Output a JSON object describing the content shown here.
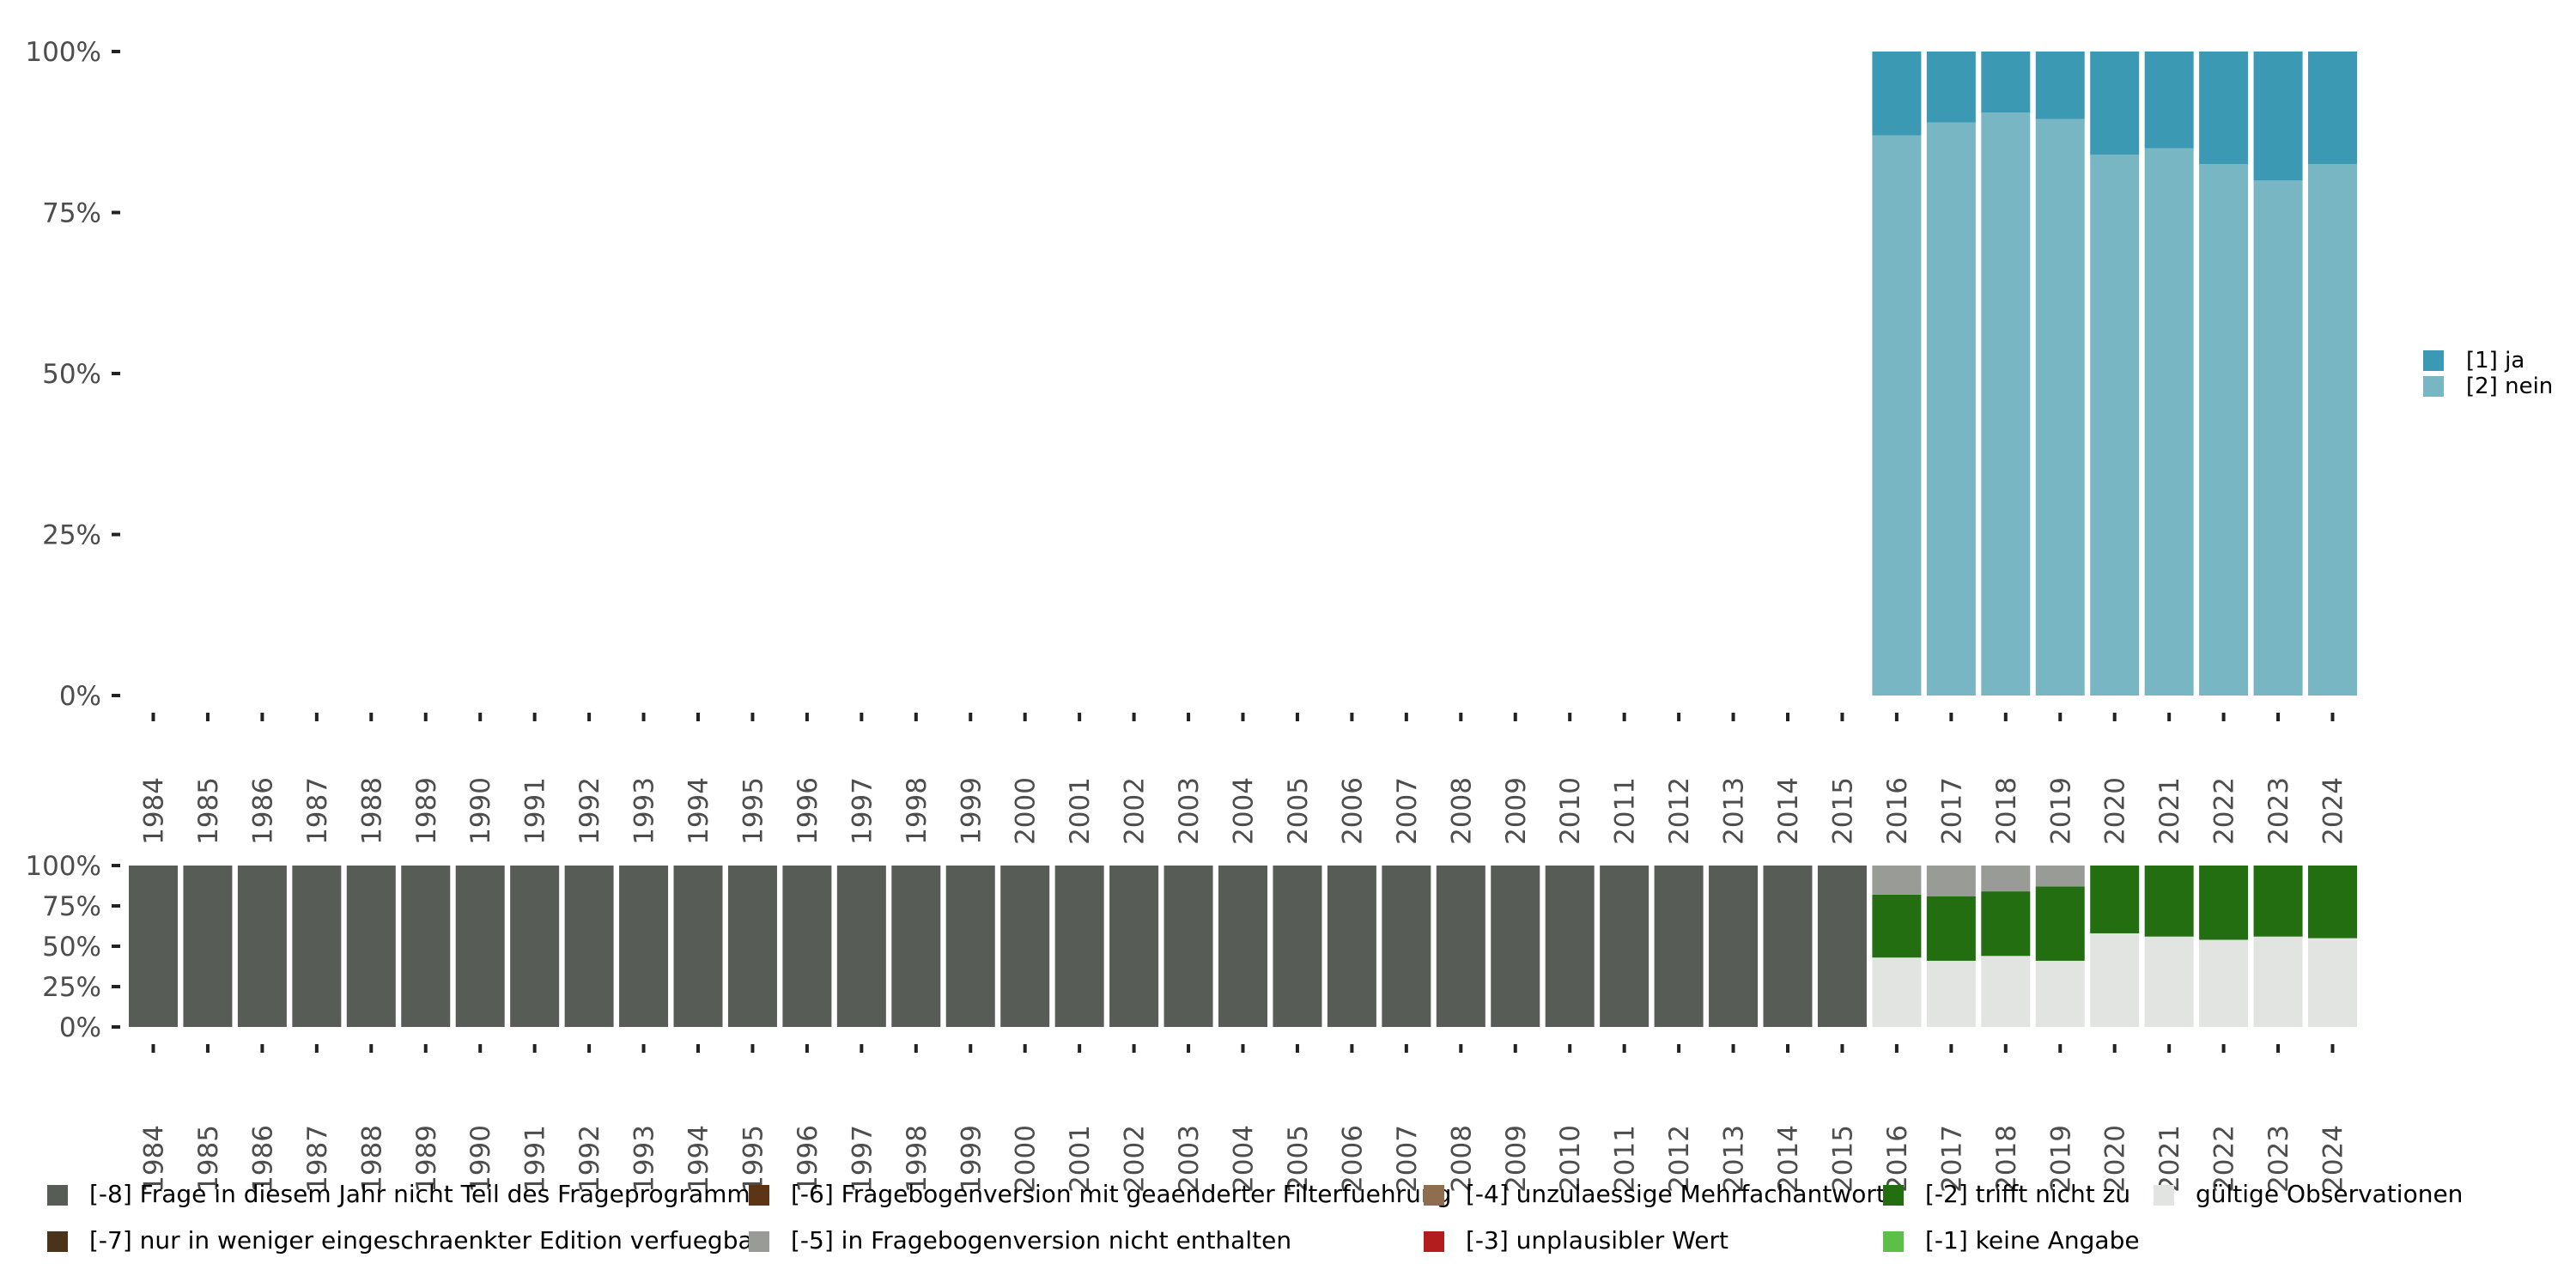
{
  "chart_data": [
    {
      "type": "bar",
      "stacked": true,
      "title": "",
      "xlabel": "",
      "ylabel": "",
      "ylim": [
        0,
        100
      ],
      "y_ticks": [
        "0%",
        "25%",
        "50%",
        "75%",
        "100%"
      ],
      "categories": [
        "1984",
        "1985",
        "1986",
        "1987",
        "1988",
        "1989",
        "1990",
        "1991",
        "1992",
        "1993",
        "1994",
        "1995",
        "1996",
        "1997",
        "1998",
        "1999",
        "2000",
        "2001",
        "2002",
        "2003",
        "2004",
        "2005",
        "2006",
        "2007",
        "2008",
        "2009",
        "2010",
        "2011",
        "2012",
        "2013",
        "2014",
        "2015",
        "2016",
        "2017",
        "2018",
        "2019",
        "2020",
        "2021",
        "2022",
        "2023",
        "2024"
      ],
      "legend_position": "right",
      "series": [
        {
          "name": "[2] nein",
          "color": "#78b6c4",
          "values": [
            null,
            null,
            null,
            null,
            null,
            null,
            null,
            null,
            null,
            null,
            null,
            null,
            null,
            null,
            null,
            null,
            null,
            null,
            null,
            null,
            null,
            null,
            null,
            null,
            null,
            null,
            null,
            null,
            null,
            null,
            null,
            null,
            87,
            89,
            90.5,
            89.5,
            84,
            85,
            82.5,
            80,
            82.5
          ]
        },
        {
          "name": "[1] ja",
          "color": "#3c99b3",
          "values": [
            null,
            null,
            null,
            null,
            null,
            null,
            null,
            null,
            null,
            null,
            null,
            null,
            null,
            null,
            null,
            null,
            null,
            null,
            null,
            null,
            null,
            null,
            null,
            null,
            null,
            null,
            null,
            null,
            null,
            null,
            null,
            null,
            13,
            11,
            9.5,
            10.5,
            16,
            15,
            17.5,
            20,
            17.5
          ]
        }
      ]
    },
    {
      "type": "bar",
      "stacked": true,
      "title": "",
      "xlabel": "",
      "ylabel": "",
      "ylim": [
        0,
        100
      ],
      "y_ticks": [
        "0%",
        "25%",
        "50%",
        "75%",
        "100%"
      ],
      "categories": [
        "1984",
        "1985",
        "1986",
        "1987",
        "1988",
        "1989",
        "1990",
        "1991",
        "1992",
        "1993",
        "1994",
        "1995",
        "1996",
        "1997",
        "1998",
        "1999",
        "2000",
        "2001",
        "2002",
        "2003",
        "2004",
        "2005",
        "2006",
        "2007",
        "2008",
        "2009",
        "2010",
        "2011",
        "2012",
        "2013",
        "2014",
        "2015",
        "2016",
        "2017",
        "2018",
        "2019",
        "2020",
        "2021",
        "2022",
        "2023",
        "2024"
      ],
      "legend_position": "bottom",
      "series": [
        {
          "name": "gültige Observationen",
          "color": "#e1e4e0",
          "values": [
            0,
            0,
            0,
            0,
            0,
            0,
            0,
            0,
            0,
            0,
            0,
            0,
            0,
            0,
            0,
            0,
            0,
            0,
            0,
            0,
            0,
            0,
            0,
            0,
            0,
            0,
            0,
            0,
            0,
            0,
            0,
            0,
            43,
            41,
            44,
            41,
            58,
            56,
            54,
            56,
            55
          ]
        },
        {
          "name": "[-1] keine Angabe",
          "color": "#5cbf47",
          "values": [
            0,
            0,
            0,
            0,
            0,
            0,
            0,
            0,
            0,
            0,
            0,
            0,
            0,
            0,
            0,
            0,
            0,
            0,
            0,
            0,
            0,
            0,
            0,
            0,
            0,
            0,
            0,
            0,
            0,
            0,
            0,
            0,
            0,
            0,
            0,
            0,
            0,
            0,
            0,
            0,
            0
          ]
        },
        {
          "name": "[-2] trifft nicht zu",
          "color": "#226e11",
          "values": [
            0,
            0,
            0,
            0,
            0,
            0,
            0,
            0,
            0,
            0,
            0,
            0,
            0,
            0,
            0,
            0,
            0,
            0,
            0,
            0,
            0,
            0,
            0,
            0,
            0,
            0,
            0,
            0,
            0,
            0,
            0,
            0,
            39,
            40,
            40,
            46,
            42,
            44,
            46,
            44,
            45
          ]
        },
        {
          "name": "[-3] unplausibler Wert",
          "color": "#b31d1d",
          "values": [
            0,
            0,
            0,
            0,
            0,
            0,
            0,
            0,
            0,
            0,
            0,
            0,
            0,
            0,
            0,
            0,
            0,
            0,
            0,
            0,
            0,
            0,
            0,
            0,
            0,
            0,
            0,
            0,
            0,
            0,
            0,
            0,
            0,
            0,
            0,
            0,
            0,
            0,
            0,
            0,
            0
          ]
        },
        {
          "name": "[-4] unzulaessige Mehrfachantwort",
          "color": "#8f6e4f",
          "values": [
            0,
            0,
            0,
            0,
            0,
            0,
            0,
            0,
            0,
            0,
            0,
            0,
            0,
            0,
            0,
            0,
            0,
            0,
            0,
            0,
            0,
            0,
            0,
            0,
            0,
            0,
            0,
            0,
            0,
            0,
            0,
            0,
            0,
            0,
            0,
            0,
            0,
            0,
            0,
            0,
            0
          ]
        },
        {
          "name": "[-5] in Fragebogenversion nicht enthalten",
          "color": "#999b97",
          "values": [
            0,
            0,
            0,
            0,
            0,
            0,
            0,
            0,
            0,
            0,
            0,
            0,
            0,
            0,
            0,
            0,
            0,
            0,
            0,
            0,
            0,
            0,
            0,
            0,
            0,
            0,
            0,
            0,
            0,
            0,
            0,
            0,
            18,
            19,
            16,
            13,
            0,
            0,
            0,
            0,
            0
          ]
        },
        {
          "name": "[-6] Fragebogenversion mit geaenderter Filterfuehrung",
          "color": "#5c3517",
          "values": [
            0,
            0,
            0,
            0,
            0,
            0,
            0,
            0,
            0,
            0,
            0,
            0,
            0,
            0,
            0,
            0,
            0,
            0,
            0,
            0,
            0,
            0,
            0,
            0,
            0,
            0,
            0,
            0,
            0,
            0,
            0,
            0,
            0,
            0,
            0,
            0,
            0,
            0,
            0,
            0,
            0
          ]
        },
        {
          "name": "[-7] nur in weniger eingeschraenkter Edition verfuegbar",
          "color": "#4a3318",
          "values": [
            0,
            0,
            0,
            0,
            0,
            0,
            0,
            0,
            0,
            0,
            0,
            0,
            0,
            0,
            0,
            0,
            0,
            0,
            0,
            0,
            0,
            0,
            0,
            0,
            0,
            0,
            0,
            0,
            0,
            0,
            0,
            0,
            0,
            0,
            0,
            0,
            0,
            0,
            0,
            0,
            0
          ]
        },
        {
          "name": "[-8] Frage in diesem Jahr nicht Teil des Frageprogramms",
          "color": "#575c57",
          "values": [
            100,
            100,
            100,
            100,
            100,
            100,
            100,
            100,
            100,
            100,
            100,
            100,
            100,
            100,
            100,
            100,
            100,
            100,
            100,
            100,
            100,
            100,
            100,
            100,
            100,
            100,
            100,
            100,
            100,
            100,
            100,
            100,
            0,
            0,
            0,
            0,
            0,
            0,
            0,
            0,
            0
          ]
        }
      ],
      "legend_order": [
        "[-8] Frage in diesem Jahr nicht Teil des Frageprogramms",
        "[-7] nur in weniger eingeschraenkter Edition verfuegbar",
        "[-6] Fragebogenversion mit geaenderter Filterfuehrung",
        "[-5] in Fragebogenversion nicht enthalten",
        "[-4] unzulaessige Mehrfachantwort",
        "[-3] unplausibler Wert",
        "[-2] trifft nicht zu",
        "[-1] keine Angabe",
        "gültige Observationen"
      ]
    }
  ]
}
